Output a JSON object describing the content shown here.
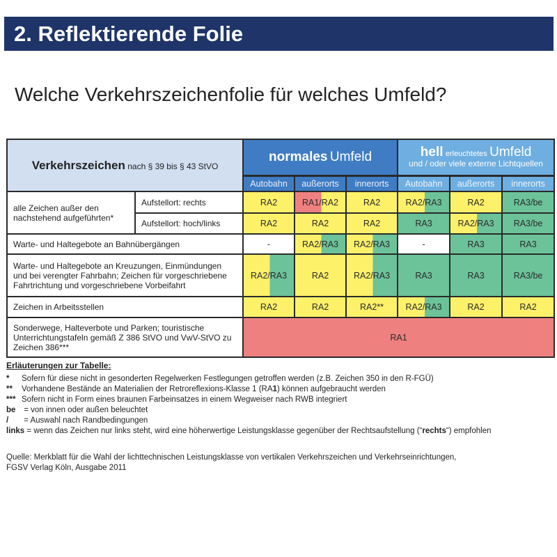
{
  "title": "2. Reflektierende Folie",
  "subtitle": "Welche Verkehrszeichenfolie für welches Umfeld?",
  "colors": {
    "title_bar": "#1f3569",
    "normal_header": "#3f7cc3",
    "bright_header": "#6eaee0",
    "left_header": "#d1dff1",
    "RA1": "#ee8080",
    "RA2": "#fef16a",
    "RA3": "#6cc39a",
    "none": "#ffffff"
  },
  "table": {
    "left_header": {
      "bold": "Verkehrszeichen",
      "rest": "nach § 39 bis § 43 StVO"
    },
    "group_normal": {
      "bold": "normales",
      "rest": "Umfeld"
    },
    "group_bright": {
      "bold": "hell",
      "small": "erleuchtetes",
      "big": "Umfeld",
      "line2": "und / oder viele externe Lichtquellen"
    },
    "columns": [
      "Autobahn",
      "außerorts",
      "innerorts",
      "Autobahn",
      "außerorts",
      "innerorts"
    ],
    "row_labels": {
      "group1": "alle Zeichen außer den nachstehend aufgeführten*",
      "sub1": "Aufstellort: rechts",
      "sub2": "Aufstellort: hoch/links",
      "r3": "Warte- und Haltegebote an Bahnübergängen",
      "r4": "Warte- und Haltegebote an Kreuzungen, Einmündungen und bei verengter Fahrbahn; Zeichen für vorgeschriebene Fahrtrichtung und vorgeschriebene Vorbeifahrt",
      "r5": "Zeichen in Arbeitsstellen",
      "r6": "Sonderwege, Halteverbote und Parken; touristische Unterrichtungstafeln gemäß Z 386 StVO und VwV-StVO zu Zeichen 386***"
    },
    "rows": [
      [
        {
          "text": "RA2",
          "fill": [
            "RA2"
          ]
        },
        {
          "text": "RA1/RA2",
          "fill": [
            "RA1",
            "RA2"
          ]
        },
        {
          "text": "RA2",
          "fill": [
            "RA2"
          ]
        },
        {
          "text": "RA2/RA3",
          "fill": [
            "RA2",
            "RA3"
          ]
        },
        {
          "text": "RA2",
          "fill": [
            "RA2"
          ]
        },
        {
          "text": "RA3/be",
          "fill": [
            "RA3"
          ]
        }
      ],
      [
        {
          "text": "RA2",
          "fill": [
            "RA2"
          ]
        },
        {
          "text": "RA2",
          "fill": [
            "RA2"
          ]
        },
        {
          "text": "RA2",
          "fill": [
            "RA2"
          ]
        },
        {
          "text": "RA3",
          "fill": [
            "RA3"
          ]
        },
        {
          "text": "RA2/RA3",
          "fill": [
            "RA2",
            "RA3"
          ]
        },
        {
          "text": "RA3/be",
          "fill": [
            "RA3"
          ]
        }
      ],
      [
        {
          "text": "-",
          "fill": [
            "none"
          ]
        },
        {
          "text": "RA2/RA3",
          "fill": [
            "RA2",
            "RA3"
          ]
        },
        {
          "text": "RA2/RA3",
          "fill": [
            "RA2",
            "RA3"
          ]
        },
        {
          "text": "-",
          "fill": [
            "none"
          ]
        },
        {
          "text": "RA3",
          "fill": [
            "RA3"
          ]
        },
        {
          "text": "RA3",
          "fill": [
            "RA3"
          ]
        }
      ],
      [
        {
          "text": "RA2/RA3",
          "fill": [
            "RA2",
            "RA3"
          ]
        },
        {
          "text": "RA2",
          "fill": [
            "RA2"
          ]
        },
        {
          "text": "RA2/RA3",
          "fill": [
            "RA2",
            "RA3"
          ]
        },
        {
          "text": "RA3",
          "fill": [
            "RA3"
          ]
        },
        {
          "text": "RA3",
          "fill": [
            "RA3"
          ]
        },
        {
          "text": "RA3/be",
          "fill": [
            "RA3"
          ]
        }
      ],
      [
        {
          "text": "RA2",
          "fill": [
            "RA2"
          ]
        },
        {
          "text": "RA2",
          "fill": [
            "RA2"
          ]
        },
        {
          "text": "RA2**",
          "fill": [
            "RA2"
          ]
        },
        {
          "text": "RA2/RA3",
          "fill": [
            "RA2",
            "RA3"
          ]
        },
        {
          "text": "RA2",
          "fill": [
            "RA2"
          ]
        },
        {
          "text": "RA2",
          "fill": [
            "RA2"
          ]
        }
      ],
      [
        {
          "text": "RA1",
          "fill": [
            "RA1"
          ],
          "span": 6
        }
      ]
    ]
  },
  "notes": {
    "heading": "Erläuterungen zur Tabelle:",
    "items": [
      {
        "marker": "*",
        "segments": [
          {
            "t": "Sofern für diese nicht in gesonderten Regelwerken Festlegungen getroffen werden (z.B. Zeichen 350 in den R-FGÜ)"
          }
        ]
      },
      {
        "marker": "**",
        "segments": [
          {
            "t": "Vorhandene Bestände an Materialien der Retroreflexions-Klasse 1 (RA"
          },
          {
            "t": "1",
            "b": true
          },
          {
            "t": ") können aufgebraucht werden"
          }
        ]
      },
      {
        "marker": "***",
        "segments": [
          {
            "t": "Sofern nicht in Form eines braunen Farbeinsatzes in einem Wegweiser nach RWB integriert"
          }
        ]
      },
      {
        "marker": "be",
        "segments": [
          {
            "t": " = von innen oder außen beleuchtet"
          }
        ]
      },
      {
        "marker": "/",
        "segments": [
          {
            "t": " = Auswahl nach Randbedingungen"
          }
        ]
      },
      {
        "marker": "links",
        "segments": [
          {
            "t": " = wenn das Zeichen nur links steht, wird eine höherwertige Leistungsklasse gegenüber der Rechtsaufstellung (“"
          },
          {
            "t": "rechts",
            "b": true
          },
          {
            "t": "“) empfohlen"
          }
        ]
      }
    ]
  },
  "source": {
    "line1": "Quelle: Merkblatt für die Wahl der lichttechnischen Leistungsklasse von vertikalen Verkehrszeichen und Verkehrseinrichtungen,",
    "line2": "FGSV Verlag Köln, Ausgabe 2011"
  }
}
